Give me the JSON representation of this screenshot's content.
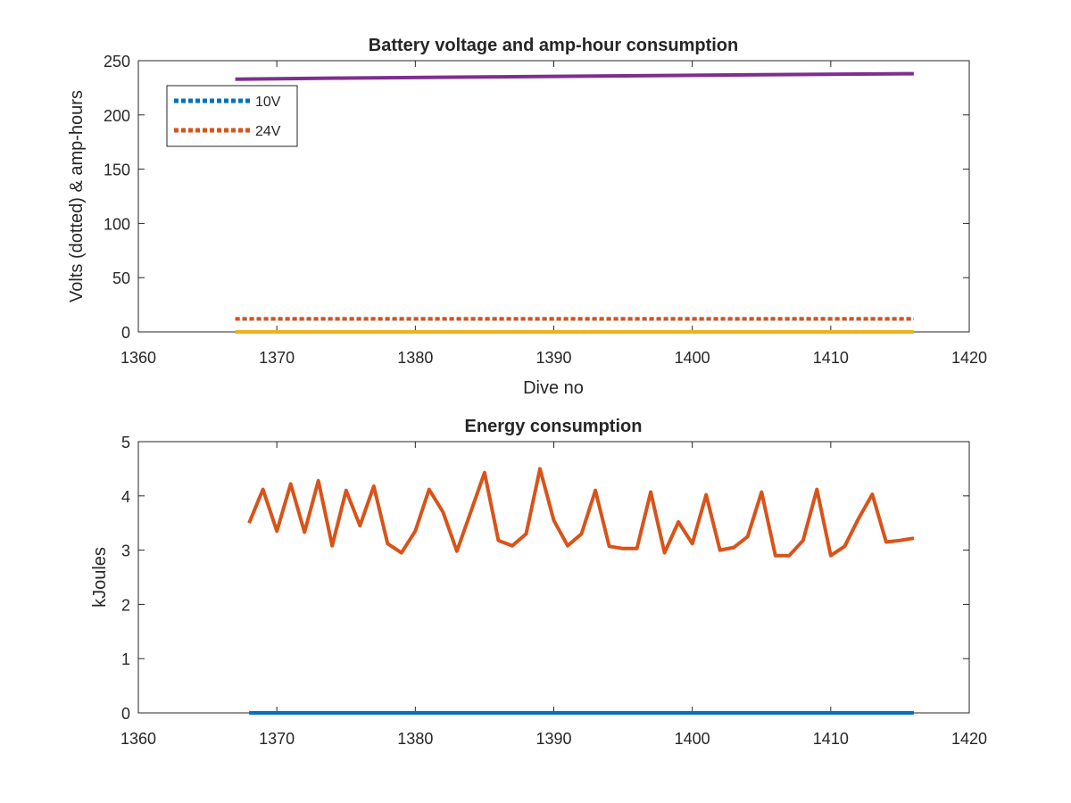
{
  "chart_data": [
    {
      "type": "line",
      "title": "Battery voltage and amp-hour consumption",
      "xlabel": "Dive no",
      "ylabel": "Volts (dotted) & amp-hours",
      "xlim": [
        1360,
        1420
      ],
      "ylim": [
        0,
        250
      ],
      "xticks": [
        1360,
        1370,
        1380,
        1390,
        1400,
        1410,
        1420
      ],
      "yticks": [
        0,
        50,
        100,
        150,
        200,
        250
      ],
      "grid": false,
      "legend_position": "top-left",
      "series": [
        {
          "name": "10V",
          "style": "dotted",
          "color": "#0072BD",
          "x": [
            1367,
            1416
          ],
          "y": [
            12,
            12
          ]
        },
        {
          "name": "24V",
          "style": "dotted",
          "color": "#D95319",
          "x": [
            1367,
            1416
          ],
          "y": [
            12,
            12
          ]
        },
        {
          "style": "solid",
          "color": "#EDB120",
          "x": [
            1367,
            1416
          ],
          "y": [
            0,
            0
          ]
        },
        {
          "style": "solid",
          "color": "#7E2F8E",
          "x": [
            1367,
            1375,
            1385,
            1395,
            1405,
            1416
          ],
          "y": [
            233,
            234,
            235,
            236,
            237,
            238
          ]
        }
      ]
    },
    {
      "type": "line",
      "title": "Energy consumption",
      "xlabel": "",
      "ylabel": "kJoules",
      "xlim": [
        1360,
        1420
      ],
      "ylim": [
        0,
        5
      ],
      "xticks": [
        1360,
        1370,
        1380,
        1390,
        1400,
        1410,
        1420
      ],
      "yticks": [
        0,
        1,
        2,
        3,
        4,
        5
      ],
      "grid": false,
      "series": [
        {
          "style": "solid",
          "color": "#0072BD",
          "x": [
            1368,
            1416
          ],
          "y": [
            0,
            0
          ]
        },
        {
          "style": "solid",
          "color": "#D95319",
          "x": [
            1368,
            1369,
            1370,
            1371,
            1372,
            1373,
            1374,
            1375,
            1376,
            1377,
            1378,
            1379,
            1380,
            1381,
            1382,
            1383,
            1384,
            1385,
            1386,
            1387,
            1388,
            1389,
            1390,
            1391,
            1392,
            1393,
            1394,
            1395,
            1396,
            1397,
            1398,
            1399,
            1400,
            1401,
            1402,
            1403,
            1404,
            1405,
            1406,
            1407,
            1408,
            1409,
            1410,
            1411,
            1412,
            1413,
            1414,
            1415,
            1416
          ],
          "y": [
            3.5,
            4.12,
            3.35,
            4.22,
            3.33,
            4.28,
            3.08,
            4.1,
            3.45,
            4.18,
            3.12,
            2.95,
            3.35,
            4.12,
            3.7,
            2.98,
            3.7,
            4.43,
            3.18,
            3.08,
            3.3,
            4.5,
            3.55,
            3.08,
            3.3,
            4.1,
            3.07,
            3.03,
            3.03,
            4.07,
            2.95,
            3.52,
            3.12,
            4.02,
            3.0,
            3.05,
            3.25,
            4.07,
            2.9,
            2.9,
            3.18,
            4.12,
            2.9,
            3.07,
            3.58,
            4.03,
            3.15,
            3.18,
            3.22
          ]
        }
      ]
    }
  ]
}
